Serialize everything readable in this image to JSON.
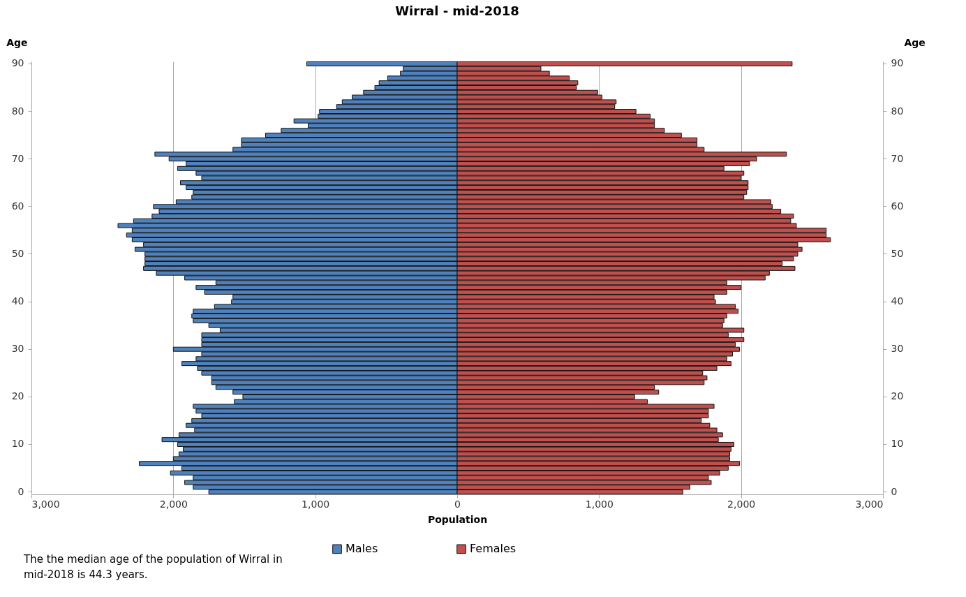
{
  "chart_data": {
    "type": "bar",
    "orientation": "horizontal",
    "title": "Wirral - mid-2018",
    "xlabel": "Population",
    "ylabel": "Age",
    "y2label": "Age",
    "categories": [
      "90",
      null,
      null,
      null,
      null,
      null,
      null,
      null,
      null,
      null,
      "80",
      null,
      null,
      null,
      null,
      null,
      null,
      null,
      null,
      null,
      "70",
      null,
      null,
      null,
      null,
      null,
      null,
      null,
      null,
      null,
      "60",
      null,
      null,
      null,
      null,
      null,
      null,
      null,
      null,
      null,
      "50",
      null,
      null,
      null,
      null,
      null,
      null,
      null,
      null,
      null,
      "40",
      null,
      null,
      null,
      null,
      null,
      null,
      null,
      null,
      null,
      "30",
      null,
      null,
      null,
      null,
      null,
      null,
      null,
      null,
      null,
      "20",
      null,
      null,
      null,
      null,
      null,
      null,
      null,
      null,
      null,
      "10",
      null,
      null,
      null,
      null,
      null,
      null,
      null,
      null,
      null,
      "0"
    ],
    "series": [
      {
        "name": "Males",
        "color": "#4f81bd",
        "values": [
          -1060,
          -380,
          -400,
          -490,
          -550,
          -580,
          -660,
          -740,
          -810,
          -850,
          -970,
          -980,
          -1150,
          -1050,
          -1240,
          -1350,
          -1520,
          -1520,
          -1580,
          -2130,
          -2030,
          -1910,
          -1970,
          -1840,
          -1800,
          -1950,
          -1910,
          -1860,
          -1870,
          -1980,
          -2140,
          -2100,
          -2150,
          -2280,
          -2390,
          -2290,
          -2330,
          -2290,
          -2210,
          -2270,
          -2200,
          -2200,
          -2200,
          -2210,
          -2120,
          -1920,
          -1700,
          -1840,
          -1780,
          -1580,
          -1590,
          -1710,
          -1860,
          -1870,
          -1860,
          -1750,
          -1670,
          -1800,
          -1800,
          -1800,
          -2000,
          -1800,
          -1840,
          -1940,
          -1830,
          -1800,
          -1730,
          -1730,
          -1700,
          -1580,
          -1510,
          -1570,
          -1860,
          -1840,
          -1800,
          -1870,
          -1910,
          -1850,
          -1960,
          -2080,
          -1970,
          -1930,
          -1960,
          -2000,
          -2240,
          -1940,
          -2020,
          -1860,
          -1920,
          -1860,
          -1750
        ]
      },
      {
        "name": "Females",
        "color": "#c0504d",
        "values": [
          2360,
          590,
          650,
          790,
          850,
          840,
          990,
          1020,
          1120,
          1110,
          1260,
          1360,
          1390,
          1390,
          1460,
          1580,
          1690,
          1690,
          1740,
          2320,
          2110,
          2060,
          1880,
          2020,
          2000,
          2050,
          2050,
          2040,
          2020,
          2210,
          2220,
          2280,
          2370,
          2350,
          2390,
          2600,
          2600,
          2630,
          2400,
          2430,
          2400,
          2370,
          2290,
          2380,
          2200,
          2170,
          1900,
          2000,
          1900,
          1810,
          1820,
          1960,
          1980,
          1900,
          1880,
          1870,
          2020,
          1910,
          2020,
          1960,
          1990,
          1940,
          1900,
          1930,
          1830,
          1730,
          1760,
          1740,
          1390,
          1420,
          1250,
          1340,
          1810,
          1770,
          1770,
          1720,
          1780,
          1830,
          1870,
          1840,
          1950,
          1930,
          1920,
          1920,
          1990,
          1910,
          1850,
          1770,
          1790,
          1640,
          1590
        ]
      }
    ],
    "xlim": [
      -3000,
      3000
    ],
    "xticks": [
      {
        "value": -3000,
        "label": "3,000"
      },
      {
        "value": -2000,
        "label": "2,000"
      },
      {
        "value": -1000,
        "label": "1,000"
      },
      0,
      {
        "value": 1000,
        "label": "1,000"
      },
      {
        "value": 2000,
        "label": "2,000"
      },
      {
        "value": 3000,
        "label": "3,000"
      }
    ],
    "stacked": true,
    "grid": "x",
    "legend": "bottom",
    "annotations": [
      "The the median age of the population of Wirral in mid-2018 is 44.3 years."
    ]
  }
}
